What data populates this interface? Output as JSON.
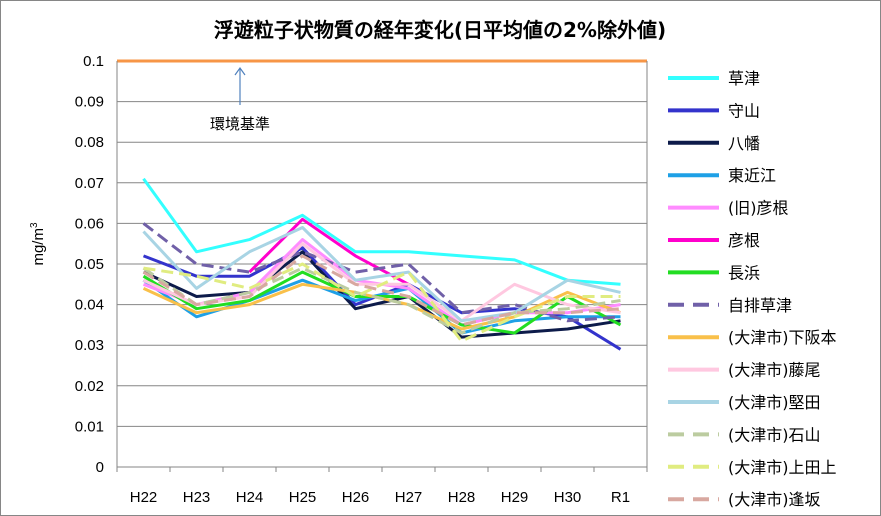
{
  "chart_data": {
    "type": "line",
    "title": "浮遊粒子状物質の経年変化(日平均値の2%除外値)",
    "ylabel": "mg/m",
    "ylabel_superscript": "3",
    "ylim": [
      0,
      0.1
    ],
    "yticks": [
      "0",
      "0.01",
      "0.02",
      "0.03",
      "0.04",
      "0.05",
      "0.06",
      "0.07",
      "0.08",
      "0.09",
      "0.1"
    ],
    "grid": true,
    "legend_position": "right",
    "categories": [
      "H22",
      "H23",
      "H24",
      "H25",
      "H26",
      "H27",
      "H28",
      "H29",
      "H30",
      "R1"
    ],
    "reference_line": {
      "label": "環境基準",
      "value": 0.1,
      "color": "#f79646"
    },
    "series": [
      {
        "name": "草津",
        "color": "#33ffff",
        "dash": false,
        "values": [
          0.071,
          0.053,
          0.056,
          0.062,
          0.053,
          0.053,
          0.052,
          0.051,
          0.046,
          0.045
        ]
      },
      {
        "name": "守山",
        "color": "#3333cc",
        "dash": false,
        "values": [
          0.052,
          0.047,
          0.047,
          0.054,
          0.04,
          0.045,
          0.038,
          0.039,
          0.037,
          0.029
        ]
      },
      {
        "name": "八幡",
        "color": "#0d1b4a",
        "dash": false,
        "values": [
          0.048,
          0.042,
          0.043,
          0.053,
          0.039,
          0.042,
          0.032,
          0.033,
          0.034,
          0.036
        ]
      },
      {
        "name": "東近江",
        "color": "#1ea0e6",
        "dash": false,
        "values": [
          0.046,
          0.037,
          0.041,
          0.046,
          0.041,
          0.044,
          0.033,
          0.036,
          0.037,
          0.037
        ]
      },
      {
        "name": "(旧)彦根",
        "color": "#ff8cff",
        "dash": false,
        "values": [
          0.045,
          0.04,
          0.043,
          0.056,
          0.046,
          0.044,
          0.035,
          0.038,
          0.038,
          0.04
        ]
      },
      {
        "name": "彦根",
        "color": "#ff00cc",
        "dash": false,
        "values": [
          null,
          null,
          0.048,
          0.061,
          0.052,
          0.045,
          null,
          null,
          null,
          null
        ]
      },
      {
        "name": "長浜",
        "color": "#22dd22",
        "dash": false,
        "values": [
          0.047,
          0.039,
          0.041,
          0.048,
          0.042,
          0.042,
          0.035,
          0.033,
          0.042,
          0.035
        ]
      },
      {
        "name": "自排草津",
        "color": "#7060a8",
        "dash": true,
        "values": [
          0.06,
          0.05,
          0.048,
          0.053,
          0.048,
          0.05,
          0.038,
          0.04,
          0.036,
          0.037
        ]
      },
      {
        "name": "(大津市)下阪本",
        "color": "#f9c04a",
        "dash": false,
        "values": [
          0.044,
          0.038,
          0.04,
          0.045,
          0.043,
          0.04,
          0.034,
          0.037,
          0.043,
          0.038
        ]
      },
      {
        "name": "(大津市)藤尾",
        "color": "#ffc8e0",
        "dash": false,
        "values": [
          0.046,
          0.04,
          0.042,
          0.055,
          0.045,
          0.045,
          0.036,
          0.045,
          0.04,
          0.038
        ]
      },
      {
        "name": "(大津市)堅田",
        "color": "#a8d4e4",
        "dash": false,
        "values": [
          0.058,
          0.044,
          0.053,
          0.059,
          0.046,
          0.048,
          0.036,
          0.038,
          0.046,
          0.043
        ]
      },
      {
        "name": "(大津市)石山",
        "color": "#bccca0",
        "dash": true,
        "values": [
          0.049,
          0.04,
          0.043,
          0.049,
          0.043,
          0.04,
          0.033,
          0.038,
          0.039,
          0.041
        ]
      },
      {
        "name": "(大津市)上田上",
        "color": "#e0ec80",
        "dash": true,
        "values": [
          0.049,
          0.047,
          0.044,
          0.05,
          0.042,
          0.048,
          0.031,
          0.037,
          0.042,
          0.042
        ]
      },
      {
        "name": "(大津市)逢坂",
        "color": "#d8a8a0",
        "dash": true,
        "values": [
          0.048,
          0.04,
          0.042,
          0.052,
          0.045,
          0.042,
          0.035,
          0.038,
          0.038,
          0.039
        ]
      }
    ]
  }
}
